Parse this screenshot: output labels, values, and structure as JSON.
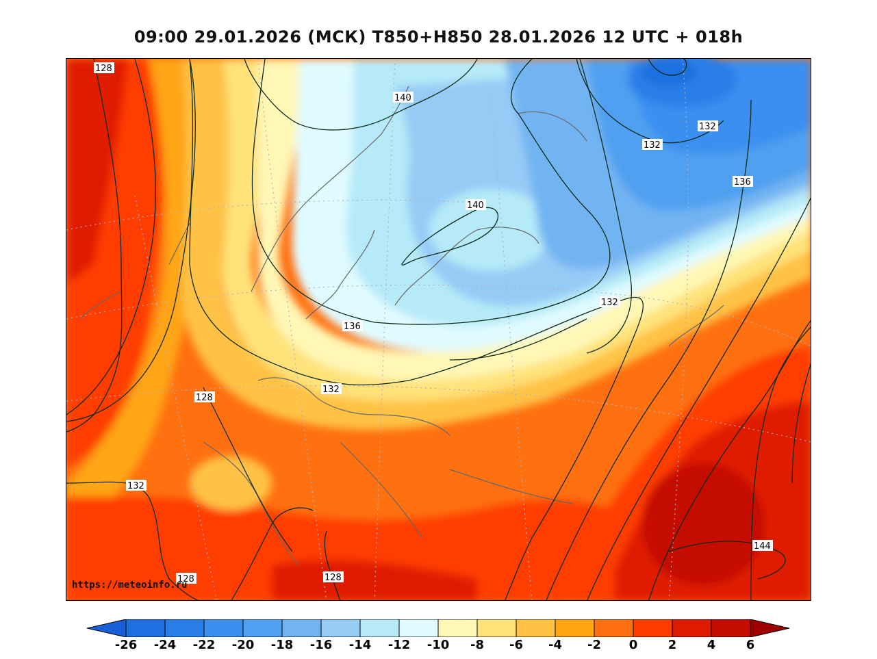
{
  "title": "09:00 29.01.2026 (МСК) T850+H850 28.01.2026 12 UTC + 018h",
  "credit": "https://meteoinfo.ru",
  "contour_labels": [
    {
      "text": "128",
      "id": "c128a"
    },
    {
      "text": "140",
      "id": "c140a"
    },
    {
      "text": "132",
      "id": "c132a"
    },
    {
      "text": "132",
      "id": "c132b"
    },
    {
      "text": "136",
      "id": "c136a"
    },
    {
      "text": "140",
      "id": "c140b"
    },
    {
      "text": "132",
      "id": "c132c"
    },
    {
      "text": "136",
      "id": "c136b"
    },
    {
      "text": "132",
      "id": "c132d"
    },
    {
      "text": "128",
      "id": "c128b"
    },
    {
      "text": "132",
      "id": "c132e"
    },
    {
      "text": "128",
      "id": "c128c"
    },
    {
      "text": "128",
      "id": "c128d"
    },
    {
      "text": "144",
      "id": "c144a"
    }
  ],
  "colorbar": {
    "ticks": [
      "-26",
      "-24",
      "-22",
      "-20",
      "-18",
      "-16",
      "-14",
      "-12",
      "-10",
      "-8",
      "-6",
      "-4",
      "-2",
      "0",
      "2",
      "4",
      "6"
    ],
    "colors": [
      "#1f6fe0",
      "#2a7ee8",
      "#3a8ff0",
      "#4fa0f0",
      "#72b4f2",
      "#96cbf5",
      "#b6eaf8",
      "#e0fbff",
      "#fff7b5",
      "#ffe27a",
      "#ffc245",
      "#ffa514",
      "#ff7010",
      "#ff3c00",
      "#e01a00",
      "#c40c00"
    ],
    "under_color": "#1a5fd6",
    "over_color": "#9e0000"
  }
}
